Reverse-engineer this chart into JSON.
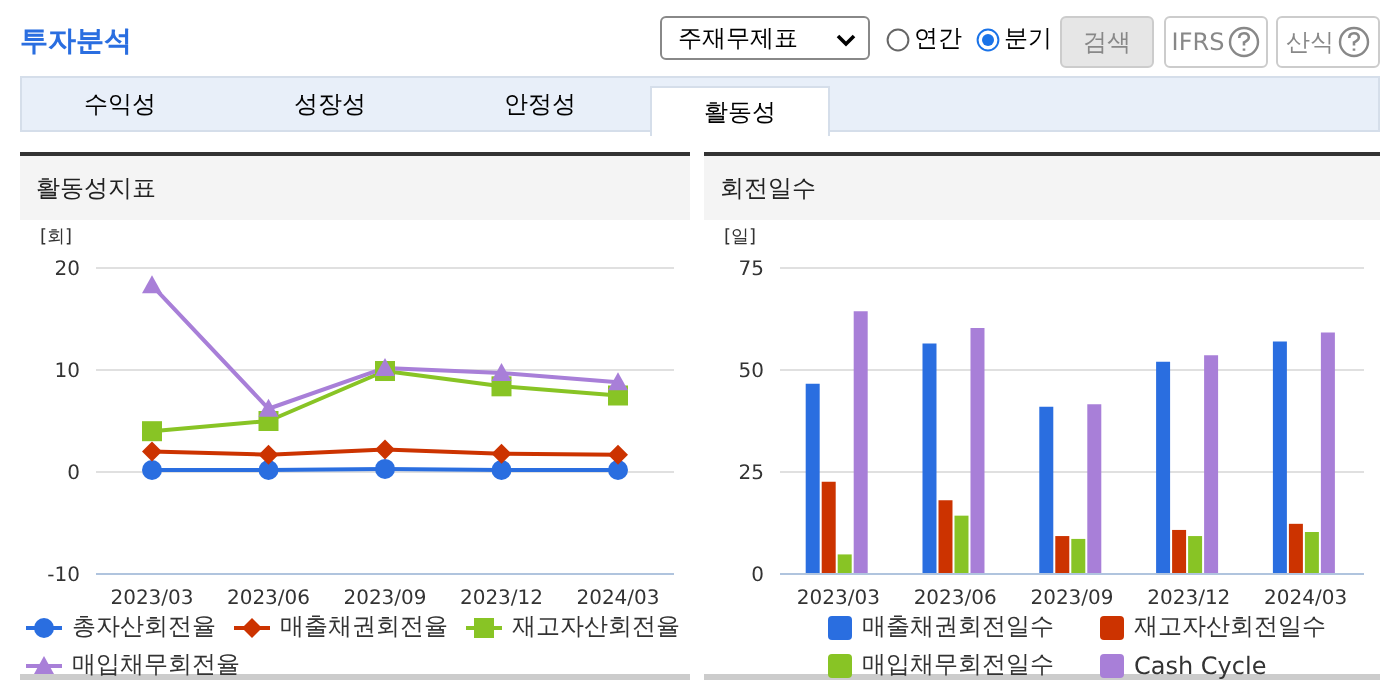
{
  "chart_data": [
    {
      "type": "other",
      "title": "투자분석",
      "annotations": [
        "주재무제표",
        "연간",
        "분기",
        "검색",
        "IFRS",
        "산식",
        "수익성",
        "성장성",
        "안정성",
        "활동성"
      ]
    },
    {
      "type": "line",
      "title": "활동성지표",
      "ylabel": "[회]",
      "categories": [
        "2023/03",
        "2023/06",
        "2023/09",
        "2023/12",
        "2024/03"
      ],
      "ylim": [
        -10,
        20
      ],
      "yticks": [
        -10,
        0,
        10,
        20
      ],
      "grid": "y",
      "legend": "bottom",
      "line_style": "solid",
      "series": [
        {
          "name": "총자산회전율",
          "color": "#2a6ee0",
          "marker": "circle",
          "values": [
            0.2,
            0.2,
            0.3,
            0.2,
            0.2
          ]
        },
        {
          "name": "매출채권회전율",
          "color": "#cc3300",
          "marker": "diamond",
          "values": [
            2.0,
            1.7,
            2.2,
            1.8,
            1.7
          ]
        },
        {
          "name": "재고자산회전율",
          "color": "#88c425",
          "marker": "square",
          "values": [
            4.0,
            5.0,
            9.9,
            8.4,
            7.5
          ]
        },
        {
          "name": "매입채무회전율",
          "color": "#a87fd8",
          "marker": "triangle",
          "values": [
            18.3,
            6.2,
            10.2,
            9.7,
            8.8
          ]
        }
      ]
    },
    {
      "type": "bar",
      "title": "회전일수",
      "ylabel": "[일]",
      "categories": [
        "2023/03",
        "2023/06",
        "2023/09",
        "2023/12",
        "2024/03"
      ],
      "ylim": [
        0,
        75
      ],
      "yticks": [
        0,
        25,
        50,
        75
      ],
      "grid": "y",
      "legend": "bottom",
      "series": [
        {
          "name": "매출채권회전일수",
          "color": "#2a6ee0",
          "values": [
            46.6,
            56.5,
            41.0,
            52.0,
            57.0
          ]
        },
        {
          "name": "재고자산회전일수",
          "color": "#cc3300",
          "values": [
            22.6,
            18.1,
            9.3,
            10.8,
            12.3
          ]
        },
        {
          "name": "매입채무회전일수",
          "color": "#88c425",
          "values": [
            4.8,
            14.3,
            8.6,
            9.3,
            10.3
          ]
        },
        {
          "name": "Cash Cycle",
          "color": "#a87fd8",
          "values": [
            64.4,
            60.3,
            41.6,
            53.6,
            59.2
          ]
        }
      ]
    }
  ]
}
